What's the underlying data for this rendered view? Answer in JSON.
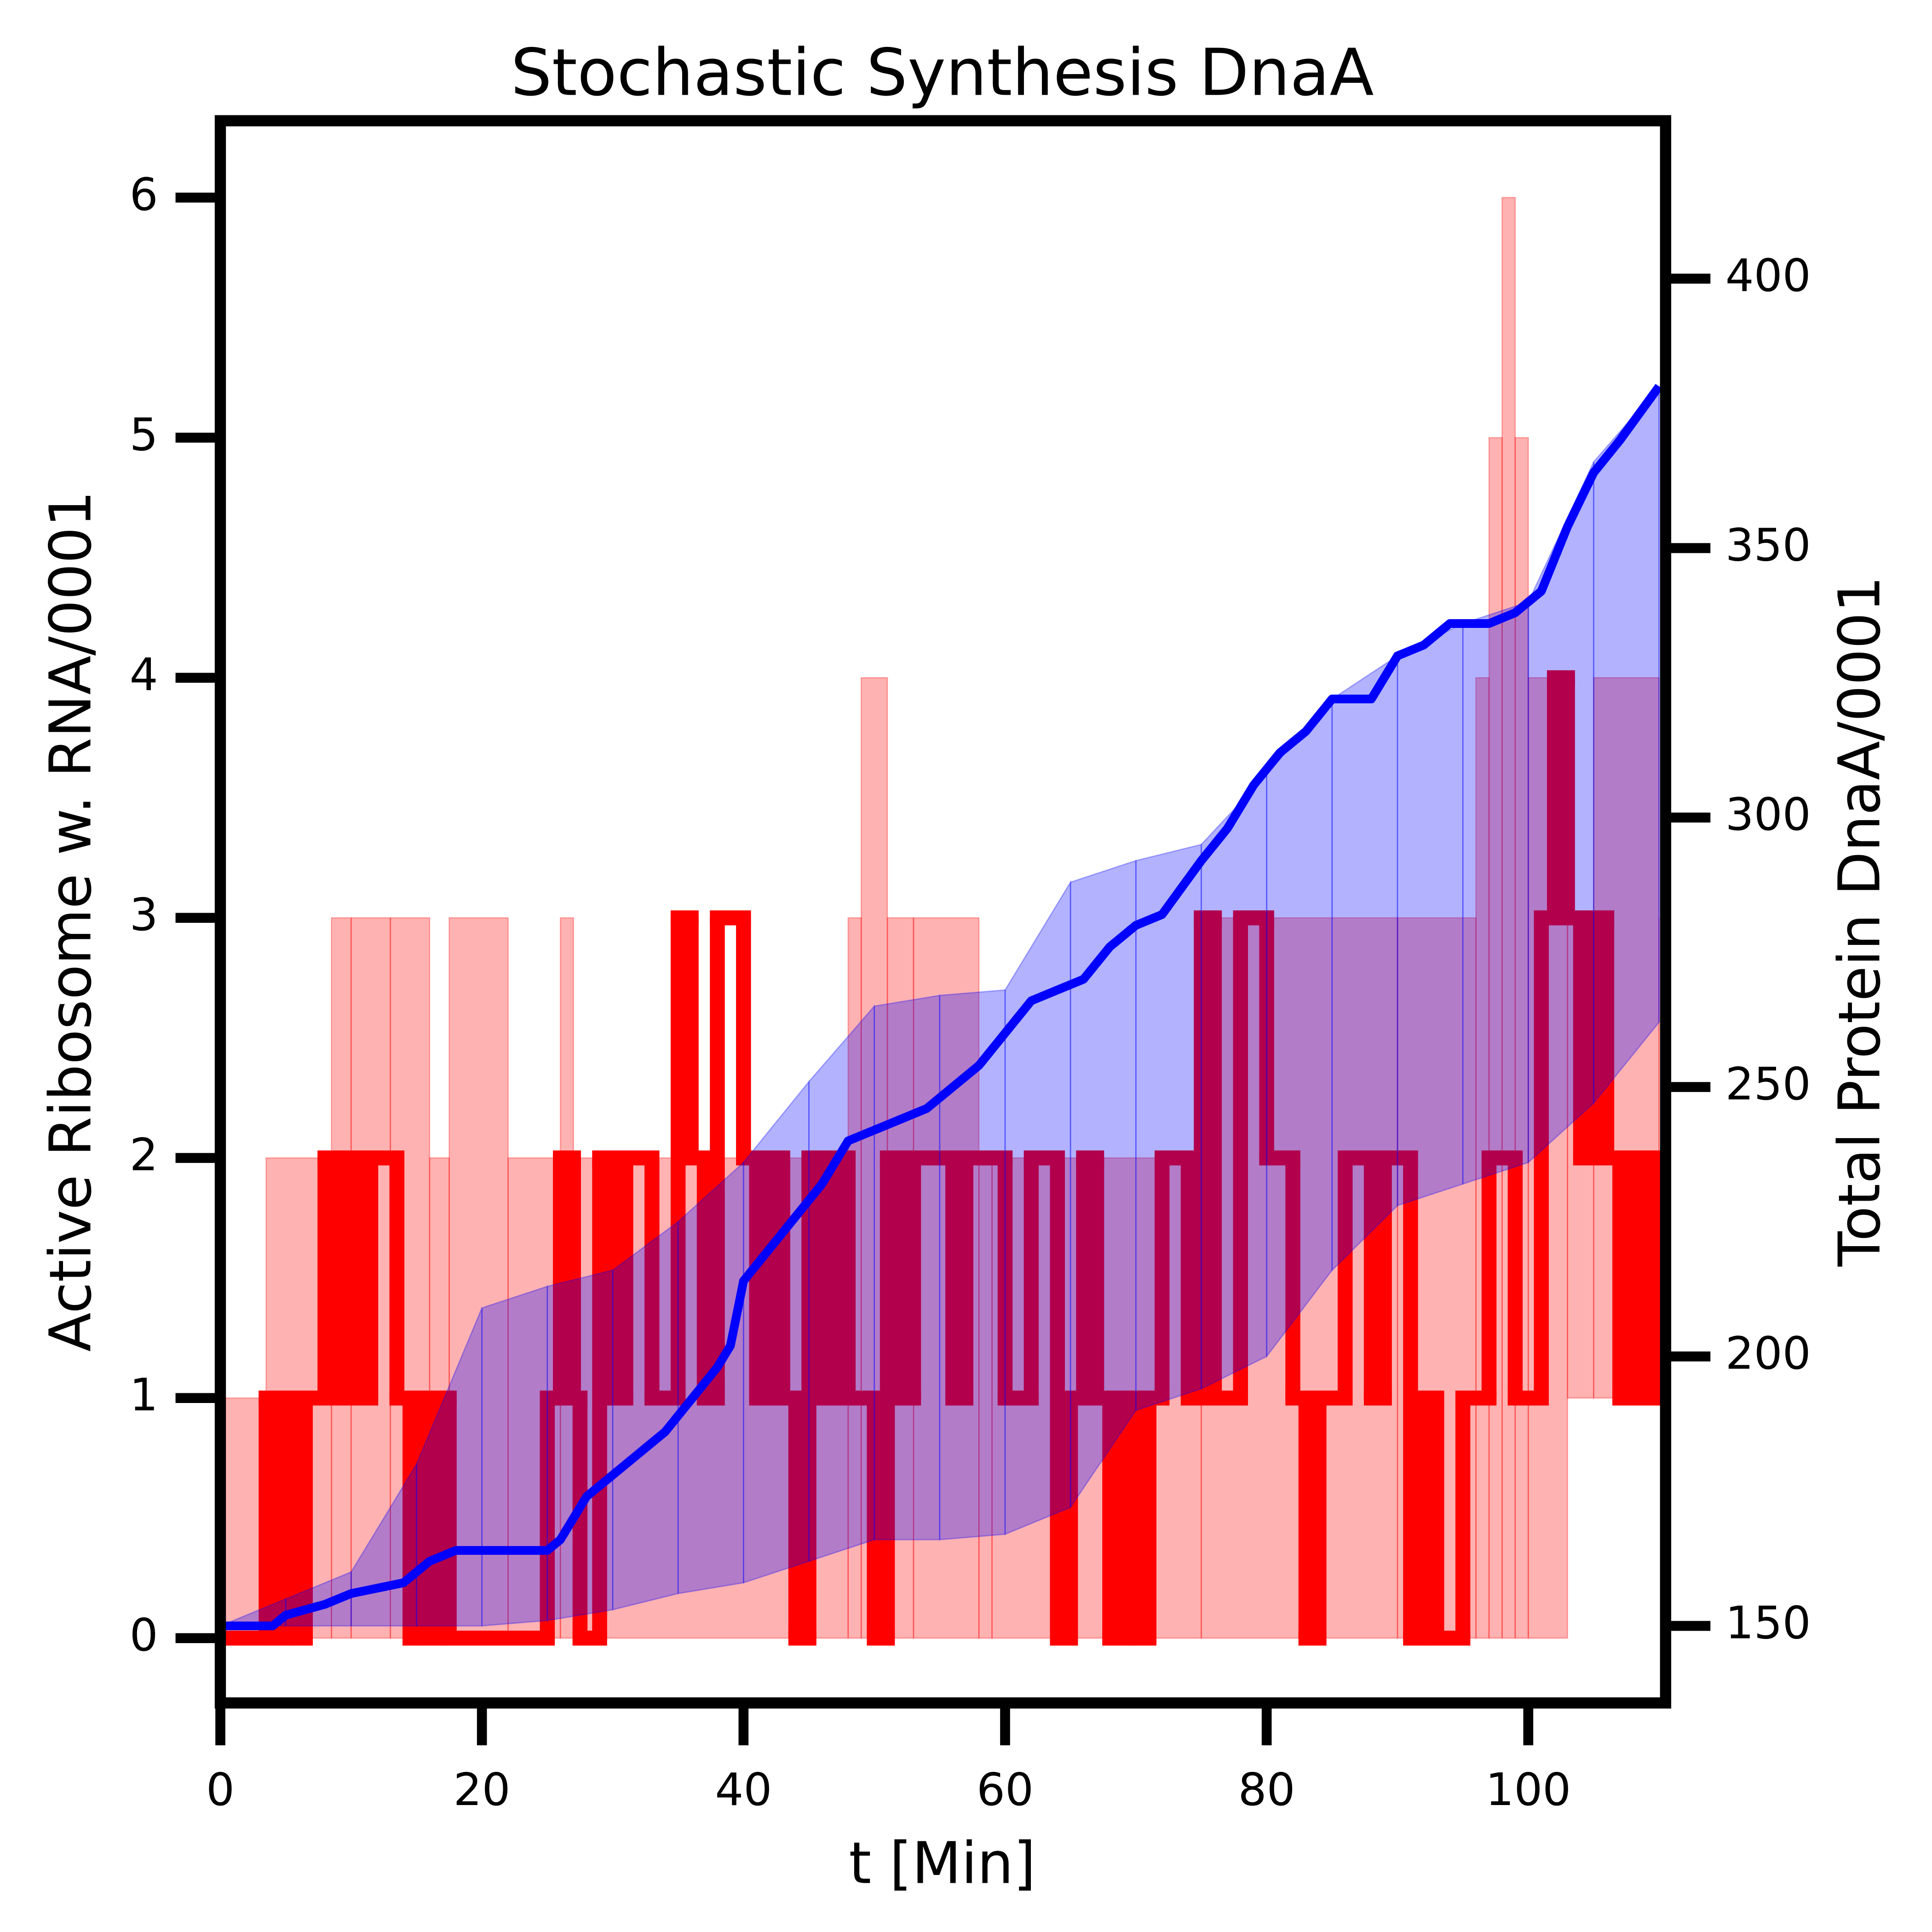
{
  "chart_data": {
    "type": "line",
    "title": "Stochastic Synthesis DnaA",
    "x_label": "t [Min]",
    "y_label": "Active Ribosome w. RNA/0001",
    "y2_label": "Total Protein DnaA/0001",
    "xlim": [
      0,
      110.5
    ],
    "ylim": [
      -0.27,
      6.32
    ],
    "y2lim": [
      135.7,
      429.3
    ],
    "xticks": [
      0,
      20,
      40,
      60,
      80,
      100
    ],
    "yticks": [
      0,
      1,
      2,
      3,
      4,
      5,
      6
    ],
    "y2ticks": [
      150,
      200,
      250,
      300,
      350,
      400
    ],
    "bands": [
      {
        "color": "#ff0000",
        "opacity": 0.3,
        "step": true,
        "x": [
          0,
          3.5,
          8.5,
          10,
          13,
          16,
          17.5,
          22,
          26,
          27,
          48,
          49,
          51,
          53,
          58,
          59,
          75,
          90,
          96,
          97,
          98,
          99,
          100,
          103,
          105,
          110
        ],
        "upper": [
          1,
          2,
          3,
          3,
          3,
          2,
          3,
          2,
          3,
          2,
          3,
          4,
          3,
          3,
          2,
          2,
          3,
          3,
          4,
          5,
          6,
          5,
          4,
          3,
          4,
          3
        ],
        "lower": [
          0,
          0,
          0,
          0,
          0,
          0,
          0,
          0,
          0,
          0,
          0,
          0,
          0,
          0,
          0,
          0,
          0,
          0,
          0,
          0,
          0,
          0,
          0,
          1,
          1,
          1
        ]
      },
      {
        "axis": "y2",
        "color": "#0000ff",
        "opacity": 0.3,
        "step": false,
        "x": [
          0,
          5,
          10,
          15,
          20,
          25,
          30,
          35,
          40,
          45,
          50,
          55,
          60,
          65,
          70,
          75,
          80,
          85,
          90,
          95,
          100,
          105,
          110
        ],
        "upper": [
          150,
          155,
          160,
          180,
          209,
          213,
          216,
          225,
          236,
          251,
          265,
          267,
          268,
          288,
          292,
          295,
          308,
          322,
          330,
          336,
          340,
          366,
          380
        ],
        "lower": [
          150,
          150,
          150,
          150,
          150,
          151,
          153,
          156,
          158,
          162,
          166,
          166,
          167,
          172,
          190,
          194,
          200,
          216,
          228,
          232,
          236,
          247,
          262
        ]
      }
    ],
    "series": [
      {
        "color": "#ff0000",
        "step": true,
        "x": [
          0,
          3.5,
          4.5,
          5,
          6,
          6.5,
          8,
          9,
          10,
          11,
          11.5,
          13.5,
          14.5,
          15,
          16,
          16.5,
          17.5,
          25,
          26,
          27,
          27.5,
          29,
          30,
          31,
          33,
          35,
          36,
          37,
          38,
          40,
          41,
          42,
          43,
          44,
          45,
          46,
          47,
          48,
          50,
          51,
          52,
          53,
          56,
          57,
          60,
          62,
          64,
          65,
          66,
          67,
          68,
          69,
          70,
          71,
          72,
          74,
          75,
          76,
          78,
          80,
          82,
          83,
          84,
          86,
          88,
          89,
          91,
          92,
          93,
          95,
          97,
          99,
          101,
          102,
          103,
          104,
          105,
          106,
          107,
          108,
          109,
          110
        ],
        "values": [
          0,
          1,
          0,
          1,
          0,
          1,
          2,
          1,
          2,
          1,
          2,
          1,
          0,
          1,
          0,
          1,
          0,
          1,
          2,
          1,
          0,
          2,
          1,
          2,
          1,
          3,
          2,
          1,
          3,
          2,
          1,
          2,
          1,
          0,
          2,
          1,
          2,
          1,
          0,
          2,
          1,
          2,
          1,
          2,
          1,
          2,
          0,
          1,
          2,
          1,
          0,
          1,
          0,
          1,
          2,
          1,
          3,
          1,
          3,
          2,
          1,
          0,
          1,
          2,
          1,
          2,
          0,
          1,
          0,
          1,
          2,
          1,
          3,
          4,
          3,
          2,
          3,
          2,
          1,
          2,
          1,
          2
        ]
      },
      {
        "axis": "y2",
        "color": "#0000ff",
        "step": false,
        "x": [
          0,
          4,
          5,
          8,
          10,
          14,
          16,
          18,
          25,
          26,
          28,
          30,
          32,
          34,
          36,
          38,
          39,
          40,
          42,
          44,
          46,
          48,
          50,
          52,
          54,
          56,
          58,
          60,
          62,
          64,
          66,
          68,
          70,
          72,
          75,
          77,
          79,
          81,
          83,
          85,
          88,
          90,
          92,
          94,
          97,
          99,
          101,
          103,
          105,
          107,
          110
        ],
        "values": [
          150,
          150,
          152,
          154,
          156,
          158,
          162,
          164,
          164,
          166,
          174,
          178,
          182,
          186,
          192,
          198,
          202,
          214,
          220,
          226,
          232,
          240,
          242,
          244,
          246,
          250,
          254,
          260,
          266,
          268,
          270,
          276,
          280,
          282,
          292,
          298,
          306,
          312,
          316,
          322,
          322,
          330,
          332,
          336,
          336,
          338,
          342,
          354,
          364,
          370,
          380
        ]
      }
    ]
  }
}
